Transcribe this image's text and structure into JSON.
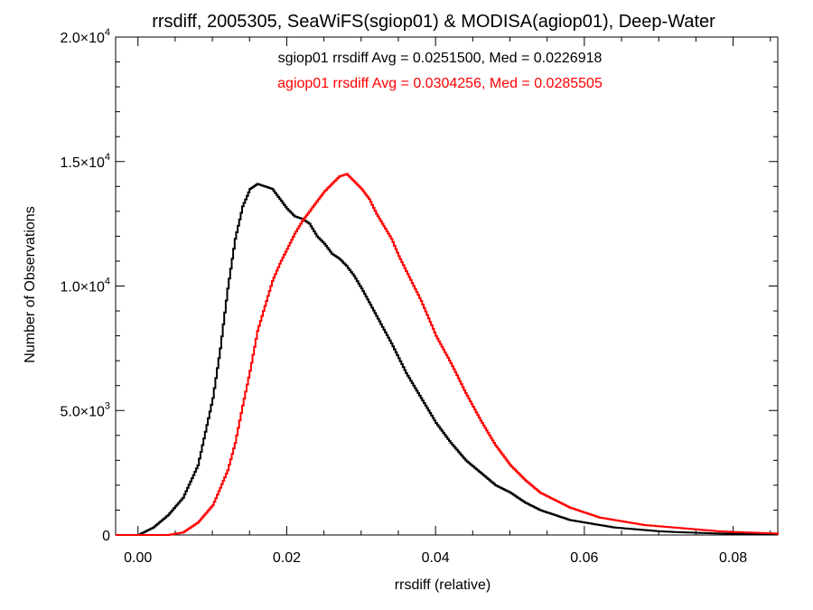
{
  "chart_data": {
    "type": "line",
    "title": "rrsdiff, 2005305, SeaWiFS(sgiop01) & MODISA(agiop01), Deep-Water",
    "xlabel": "rrsdiff (relative)",
    "ylabel": "Number of Observations",
    "xlim": [
      -0.003,
      0.086
    ],
    "ylim": [
      0,
      20000
    ],
    "x_ticks": [
      {
        "value": 0.0,
        "label": "0.00"
      },
      {
        "value": 0.02,
        "label": "0.02"
      },
      {
        "value": 0.04,
        "label": "0.04"
      },
      {
        "value": 0.06,
        "label": "0.06"
      },
      {
        "value": 0.08,
        "label": "0.08"
      }
    ],
    "y_ticks": [
      {
        "value": 0,
        "mantissa": "0",
        "exponent": ""
      },
      {
        "value": 5000,
        "mantissa": "5.0×10",
        "exponent": "3"
      },
      {
        "value": 10000,
        "mantissa": "1.0×10",
        "exponent": "4"
      },
      {
        "value": 15000,
        "mantissa": "1.5×10",
        "exponent": "4"
      },
      {
        "value": 20000,
        "mantissa": "2.0×10",
        "exponent": "4"
      }
    ],
    "legend_placement": "top-center",
    "annotations": [
      {
        "text": "sgiop01 rrsdiff Avg = 0.0251500, Med = 0.0226918",
        "color": "#000000"
      },
      {
        "text": "agiop01 rrsdiff Avg = 0.0304256, Med = 0.0285505",
        "color": "#ff0000"
      }
    ],
    "series": [
      {
        "color": "#000000",
        "x": [
          -0.003,
          0.0,
          0.002,
          0.004,
          0.006,
          0.008,
          0.01,
          0.011,
          0.012,
          0.013,
          0.014,
          0.015,
          0.016,
          0.017,
          0.018,
          0.019,
          0.02,
          0.021,
          0.022,
          0.023,
          0.024,
          0.025,
          0.026,
          0.027,
          0.028,
          0.029,
          0.03,
          0.032,
          0.034,
          0.036,
          0.038,
          0.04,
          0.042,
          0.044,
          0.046,
          0.048,
          0.05,
          0.052,
          0.054,
          0.056,
          0.058,
          0.06,
          0.062,
          0.064,
          0.066,
          0.068,
          0.07,
          0.072,
          0.074,
          0.076,
          0.078,
          0.08,
          0.082,
          0.084,
          0.086
        ],
        "y": [
          0,
          0,
          300,
          800,
          1500,
          2800,
          5500,
          7500,
          9900,
          11900,
          13200,
          13900,
          14100,
          14000,
          13900,
          13500,
          13100,
          12800,
          12700,
          12500,
          12000,
          11700,
          11300,
          11100,
          10800,
          10400,
          9900,
          8800,
          7700,
          6500,
          5500,
          4500,
          3700,
          3000,
          2500,
          2000,
          1700,
          1300,
          1000,
          800,
          600,
          500,
          400,
          300,
          250,
          200,
          150,
          120,
          100,
          80,
          60,
          50,
          40,
          30,
          20
        ]
      },
      {
        "color": "#ff0000",
        "x": [
          -0.003,
          0.0,
          0.004,
          0.006,
          0.008,
          0.01,
          0.012,
          0.013,
          0.014,
          0.015,
          0.016,
          0.017,
          0.018,
          0.019,
          0.02,
          0.021,
          0.022,
          0.023,
          0.024,
          0.025,
          0.026,
          0.027,
          0.028,
          0.029,
          0.03,
          0.031,
          0.032,
          0.033,
          0.034,
          0.035,
          0.036,
          0.037,
          0.038,
          0.04,
          0.042,
          0.044,
          0.046,
          0.048,
          0.05,
          0.052,
          0.054,
          0.056,
          0.058,
          0.06,
          0.062,
          0.064,
          0.066,
          0.068,
          0.07,
          0.072,
          0.074,
          0.076,
          0.078,
          0.08,
          0.082,
          0.084,
          0.086
        ],
        "y": [
          0,
          0,
          0,
          100,
          500,
          1200,
          2600,
          3700,
          5200,
          6600,
          8200,
          9200,
          10200,
          10900,
          11500,
          12100,
          12600,
          13000,
          13400,
          13800,
          14100,
          14400,
          14500,
          14200,
          13900,
          13500,
          12900,
          12400,
          11900,
          11200,
          10600,
          10000,
          9400,
          8000,
          6900,
          5700,
          4600,
          3600,
          2800,
          2200,
          1700,
          1400,
          1100,
          900,
          700,
          600,
          500,
          400,
          350,
          300,
          250,
          200,
          150,
          120,
          100,
          80,
          60
        ]
      }
    ]
  }
}
